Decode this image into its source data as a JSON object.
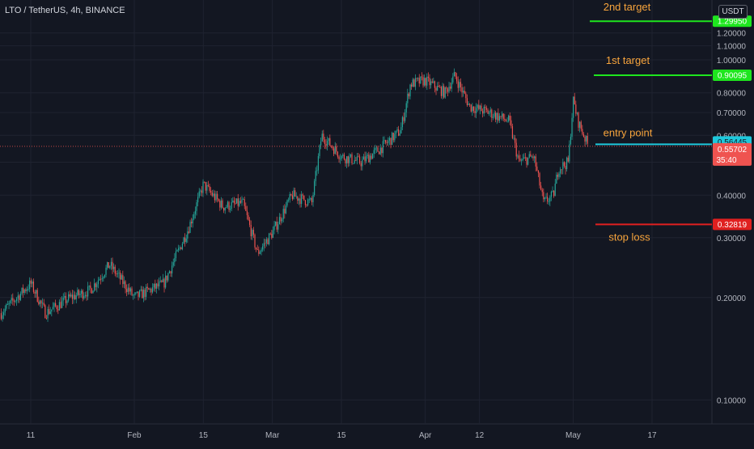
{
  "header": {
    "symbol_line": "LTO / TetherUS, 4h, BINANCE",
    "currency": "USDT"
  },
  "colors": {
    "background": "#131722",
    "grid": "#1f2330",
    "axis_text": "#b2b5be",
    "up": "#26a69a",
    "down": "#ef5350",
    "target": "#1ee61e",
    "entry": "#1ec8dc",
    "stop": "#e02020",
    "annotation": "#f7a43c"
  },
  "chart_data": {
    "type": "candlestick",
    "title": "LTO / TetherUS, 4h, BINANCE",
    "y_unit": "USDT",
    "yscale": "log",
    "ylim": [
      0.085,
      1.5
    ],
    "y_ticks": [
      0.1,
      0.2,
      0.3,
      0.4,
      0.5,
      0.6,
      0.7,
      0.8,
      1.0,
      1.1,
      1.2
    ],
    "y_tick_labels": [
      "0.10000",
      "0.20000",
      "0.30000",
      "0.40000",
      "0.50000",
      "0.60000",
      "0.70000",
      "0.80000",
      "1.00000",
      "1.10000",
      "1.20000"
    ],
    "x_tick_labels": [
      "11",
      "Feb",
      "15",
      "Mar",
      "15",
      "Apr",
      "12",
      "May",
      "17"
    ],
    "x_ticks": [
      "2021-01-11",
      "2021-02-01",
      "2021-02-15",
      "2021-03-01",
      "2021-03-15",
      "2021-04-01",
      "2021-04-12",
      "2021-05-01",
      "2021-05-17"
    ],
    "price_path": [
      [
        "2021-01-05",
        0.18
      ],
      [
        "2021-01-11",
        0.22
      ],
      [
        "2021-01-14",
        0.18
      ],
      [
        "2021-01-19",
        0.2
      ],
      [
        "2021-01-23",
        0.21
      ],
      [
        "2021-01-27",
        0.25
      ],
      [
        "2021-02-01",
        0.2
      ],
      [
        "2021-02-07",
        0.22
      ],
      [
        "2021-02-12",
        0.32
      ],
      [
        "2021-02-15",
        0.43
      ],
      [
        "2021-02-19",
        0.37
      ],
      [
        "2021-02-23",
        0.38
      ],
      [
        "2021-02-26",
        0.27
      ],
      [
        "2021-03-01",
        0.31
      ],
      [
        "2021-03-05",
        0.4
      ],
      [
        "2021-03-09",
        0.38
      ],
      [
        "2021-03-11",
        0.6
      ],
      [
        "2021-03-15",
        0.52
      ],
      [
        "2021-03-19",
        0.5
      ],
      [
        "2021-03-23",
        0.55
      ],
      [
        "2021-03-27",
        0.62
      ],
      [
        "2021-03-29",
        0.85
      ],
      [
        "2021-04-01",
        0.87
      ],
      [
        "2021-04-05",
        0.8
      ],
      [
        "2021-04-07",
        0.9
      ],
      [
        "2021-04-10",
        0.73
      ],
      [
        "2021-04-14",
        0.7
      ],
      [
        "2021-04-18",
        0.66
      ],
      [
        "2021-04-20",
        0.5
      ],
      [
        "2021-04-23",
        0.52
      ],
      [
        "2021-04-25",
        0.38
      ],
      [
        "2021-04-27",
        0.4
      ],
      [
        "2021-04-28",
        0.48
      ],
      [
        "2021-04-30",
        0.5
      ],
      [
        "2021-05-01",
        0.76
      ],
      [
        "2021-05-02",
        0.66
      ],
      [
        "2021-05-04",
        0.56
      ]
    ],
    "current_price": {
      "value": 0.55702,
      "label": "0.55702",
      "countdown": "35:40"
    },
    "levels": [
      {
        "name": "2nd target",
        "label": "2nd target",
        "price": 1.2995,
        "price_label": "1.29950",
        "color": "#1ee61e"
      },
      {
        "name": "1st target",
        "label": "1st target",
        "price": 0.90095,
        "price_label": "0.90095",
        "color": "#1ee61e"
      },
      {
        "name": "entry point",
        "label": "entry point",
        "price": 0.56445,
        "price_label": "0.56445",
        "color": "#1ec8dc"
      },
      {
        "name": "stop loss",
        "label": "stop loss",
        "price": 0.32819,
        "price_label": "0.32819",
        "color": "#e02020"
      }
    ]
  }
}
